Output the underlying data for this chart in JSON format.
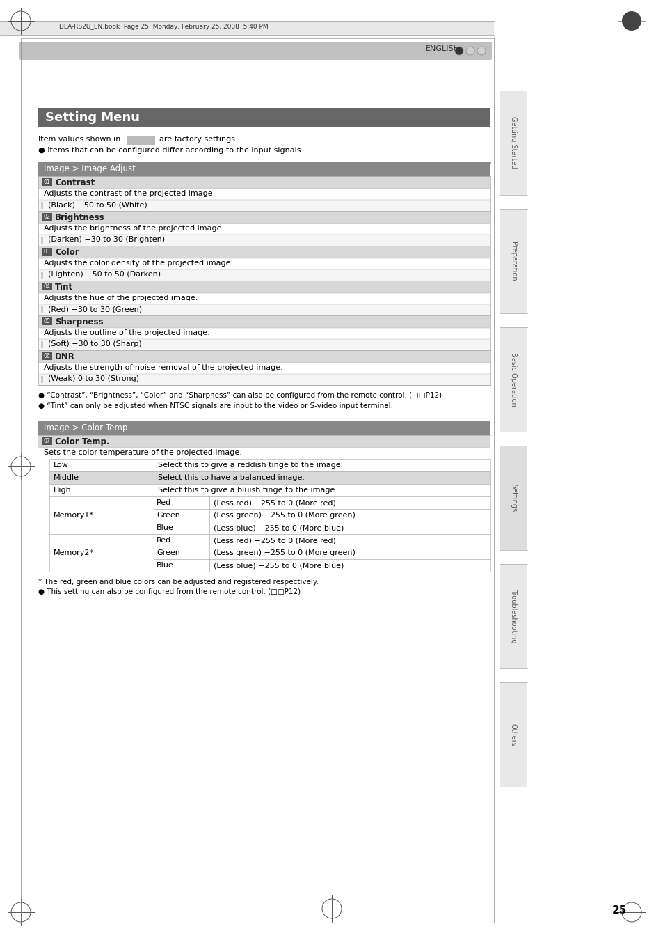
{
  "page_bg": "#ffffff",
  "top_bar_color": "#c8c8c8",
  "top_bar_text": "DLA-RS2U_EN.book  Page 25  Monday, February 25, 2008  5:40 PM",
  "english_bar_color": "#c0c0c0",
  "english_text": "ENGLISH",
  "title_bar_color": "#666666",
  "title_text": "Setting Menu",
  "title_text_color": "#ffffff",
  "intro_line1": "Item values shown in",
  "intro_factory": "are factory settings.",
  "intro_line2": "● Items that can be configured differ according to the input signals.",
  "section1_header": "Image > Image Adjust",
  "section1_header_bg": "#888888",
  "section1_header_color": "#ffffff",
  "subheader_bg": "#d8d8d8",
  "row_bg_white": "#ffffff",
  "row_bg_light": "#f0f0f0",
  "items": [
    {
      "num": "01",
      "name": "Contrast",
      "desc": "Adjusts the contrast of the projected image.",
      "range": "(Black) −50 to 50 (White)"
    },
    {
      "num": "02",
      "name": "Brightness",
      "desc": "Adjusts the brightness of the projected image.",
      "range": "(Darken) −30 to 30 (Brighten)"
    },
    {
      "num": "03",
      "name": "Color",
      "desc": "Adjusts the color density of the projected image.",
      "range": "(Lighten) −50 to 50 (Darken)"
    },
    {
      "num": "04",
      "name": "Tint",
      "desc": "Adjusts the hue of the projected image.",
      "range": "(Red) −30 to 30 (Green)"
    },
    {
      "num": "05",
      "name": "Sharpness",
      "desc": "Adjusts the outline of the projected image.",
      "range": "(Soft) −30 to 30 (Sharp)"
    },
    {
      "num": "06",
      "name": "DNR",
      "desc": "Adjusts the strength of noise removal of the projected image.",
      "range": "(Weak) 0 to 30 (Strong)"
    }
  ],
  "note1": "● “Contrast”, “Brightness”, “Color” and “Sharpness” can also be configured from the remote control. (□□P12)",
  "note2": "● “Tint” can only be adjusted when NTSC signals are input to the video or S-video input terminal.",
  "section2_header": "Image > Color Temp.",
  "section2_subheader": "07 Color Temp.",
  "section2_desc": "Sets the color temperature of the projected image.",
  "color_temp_rows": [
    {
      "col1": "Low",
      "col2": "",
      "col3": "Select this to give a reddish tinge to the image.",
      "highlight": false
    },
    {
      "col1": "Middle",
      "col2": "",
      "col3": "Select this to have a balanced image.",
      "highlight": true
    },
    {
      "col1": "High",
      "col2": "",
      "col3": "Select this to give a bluish tinge to the image.",
      "highlight": false
    },
    {
      "col1": "Memory1*",
      "col2": "Red",
      "col3": "(Less red) −255 to 0 (More red)",
      "highlight": false
    },
    {
      "col1": "Memory1*",
      "col2": "Green",
      "col3": "(Less green) −255 to 0 (More green)",
      "highlight": false
    },
    {
      "col1": "Memory1*",
      "col2": "Blue",
      "col3": "(Less blue) −255 to 0 (More blue)",
      "highlight": false
    },
    {
      "col1": "Memory2*",
      "col2": "Red",
      "col3": "(Less red) −255 to 0 (More red)",
      "highlight": false
    },
    {
      "col1": "Memory2*",
      "col2": "Green",
      "col3": "(Less green) −255 to 0 (More green)",
      "highlight": false
    },
    {
      "col1": "Memory2*",
      "col2": "Blue",
      "col3": "(Less blue) −255 to 0 (More blue)",
      "highlight": false
    }
  ],
  "note3": "* The red, green and blue colors can be adjusted and registered respectively.",
  "note4": "● This setting can also be configured from the remote control. (□□P12)",
  "side_labels": [
    "Getting Started",
    "Preparation",
    "Basic Operation",
    "Settings",
    "Troubleshooting",
    "Others"
  ],
  "page_number": "25",
  "border_color": "#999999",
  "table_border": "#aaaaaa"
}
